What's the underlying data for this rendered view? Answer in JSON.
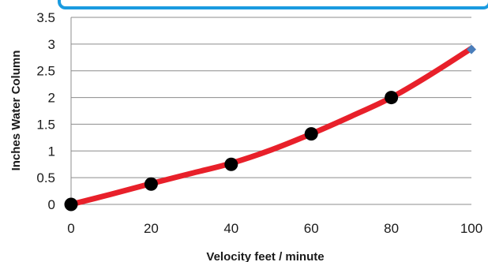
{
  "chart_data": {
    "type": "line",
    "title": "",
    "xlabel": "Velocity feet / minute",
    "ylabel": "Inches Water Column",
    "xlim": [
      0,
      100
    ],
    "ylim": [
      0,
      3.5
    ],
    "x_ticks": [
      0,
      20,
      40,
      60,
      80,
      100
    ],
    "y_ticks": [
      0,
      0.5,
      1,
      1.5,
      2,
      2.5,
      3,
      3.5
    ],
    "x_tick_labels": [
      "0",
      "20",
      "40",
      "60",
      "80",
      "100"
    ],
    "y_tick_labels": [
      "0",
      "0.5",
      "1",
      "1.5",
      "2",
      "2.5",
      "3",
      "3.5"
    ],
    "grid": "horizontal",
    "legend": "none",
    "series": [
      {
        "kind": "curve",
        "color": "#e8202a",
        "x": [
          0,
          10,
          20,
          30,
          40,
          50,
          60,
          70,
          80,
          90,
          100
        ],
        "y": [
          0,
          0.19,
          0.39,
          0.58,
          0.77,
          1.02,
          1.32,
          1.65,
          2.0,
          2.44,
          2.92
        ]
      },
      {
        "kind": "markers",
        "color": "#000000",
        "x": [
          0,
          20,
          40,
          60,
          80
        ],
        "y": [
          0,
          0.38,
          0.75,
          1.32,
          2.0
        ]
      },
      {
        "kind": "endpoint",
        "color": "#4a7ebb",
        "x": [
          100
        ],
        "y": [
          2.9
        ]
      }
    ],
    "header_bar_color": "#1a9be0"
  }
}
